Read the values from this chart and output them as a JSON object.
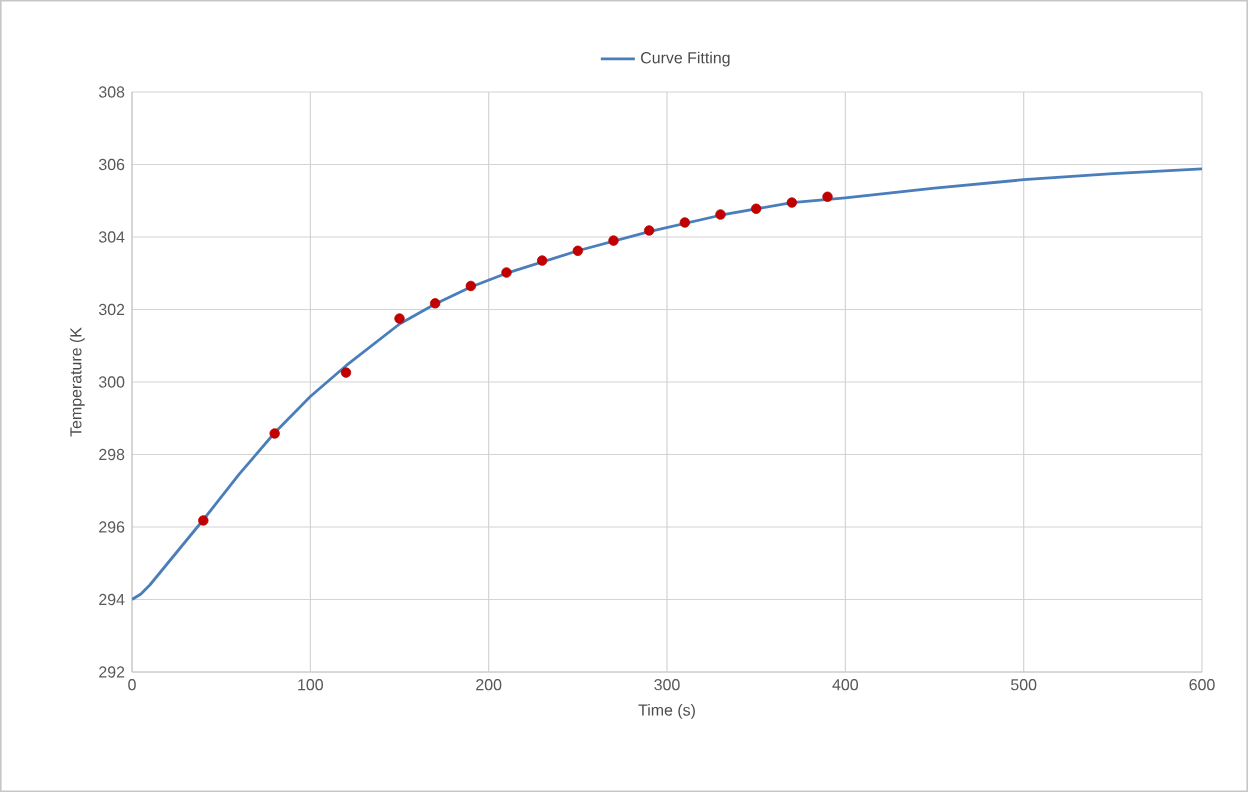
{
  "chart_data": {
    "type": "line",
    "xlabel": "Time (s)",
    "ylabel": "Temperature (K",
    "xlim": [
      0,
      600
    ],
    "ylim": [
      292,
      308
    ],
    "xticks": [
      0,
      100,
      200,
      300,
      400,
      500,
      600
    ],
    "yticks": [
      292,
      294,
      296,
      298,
      300,
      302,
      304,
      306,
      308
    ],
    "grid": true,
    "legend": "top",
    "series": [
      {
        "name": "Curve Fitting",
        "color": "#4a7ebb",
        "marker": "none",
        "line_style": "solid",
        "x": [
          0,
          5,
          10,
          20,
          40,
          60,
          80,
          100,
          120,
          150,
          170,
          190,
          210,
          250,
          290,
          330,
          370,
          400,
          450,
          500,
          550,
          600
        ],
        "values": [
          294.0,
          294.15,
          294.4,
          295.0,
          296.2,
          297.45,
          298.6,
          299.6,
          300.45,
          301.6,
          302.15,
          302.62,
          303.0,
          303.62,
          304.15,
          304.6,
          304.95,
          305.08,
          305.35,
          305.58,
          305.75,
          305.88
        ]
      },
      {
        "type": "scatter",
        "color": "#c00000",
        "marker": "circle",
        "x": [
          40,
          80,
          120,
          150,
          170,
          190,
          210,
          230,
          250,
          270,
          290,
          310,
          330,
          350,
          370,
          390
        ],
        "values": [
          296.18,
          298.58,
          300.26,
          301.75,
          302.17,
          302.65,
          303.02,
          303.35,
          303.62,
          303.9,
          304.18,
          304.4,
          304.62,
          304.78,
          304.95,
          305.11
        ]
      }
    ]
  }
}
